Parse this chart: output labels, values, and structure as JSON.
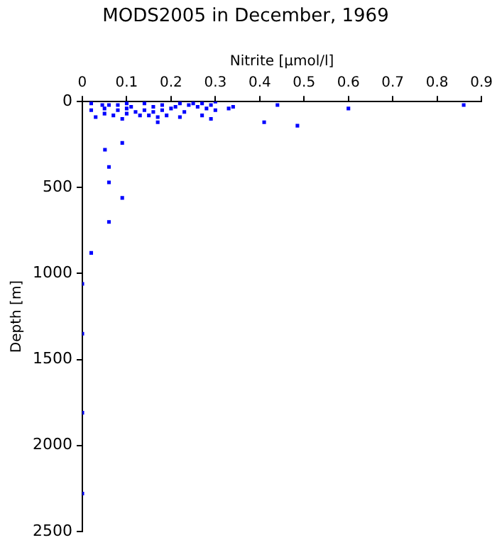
{
  "chart_data": {
    "type": "scatter",
    "title": "MODS2005 in December, 1969",
    "xlabel": "Nitrite [µmol/l]",
    "ylabel": "Depth [m]",
    "xlim": [
      0,
      0.9
    ],
    "xticks": [
      0,
      0.1,
      0.2,
      0.3,
      0.4,
      0.5,
      0.6,
      0.7,
      0.8,
      0.9
    ],
    "ylim": [
      2500,
      0
    ],
    "yticks": [
      0,
      500,
      1000,
      1500,
      2000,
      2500
    ],
    "grid": false,
    "legend": false,
    "marker": "square",
    "series": [
      {
        "color": "#0000ff",
        "x": [
          0.86,
          0.6,
          0.44,
          0.34,
          0.33,
          0.41,
          0.485,
          0.051,
          0.06,
          0.06,
          0.09,
          0.09,
          0.06,
          0.02,
          0,
          0,
          0,
          0,
          0.02,
          0.02,
          0.03,
          0.045,
          0.05,
          0.05,
          0.06,
          0.07,
          0.08,
          0.08,
          0.09,
          0.1,
          0.1,
          0.1,
          0.11,
          0.12,
          0.13,
          0.14,
          0.14,
          0.15,
          0.16,
          0.16,
          0.17,
          0.17,
          0.18,
          0.18,
          0.19,
          0.2,
          0.21,
          0.22,
          0.22,
          0.23,
          0.24,
          0.25,
          0.26,
          0.27,
          0.27,
          0.28,
          0.29,
          0.3,
          0.3,
          0.29
        ],
        "values": [
          20,
          40,
          20,
          30,
          40,
          120,
          140,
          280,
          380,
          470,
          240,
          560,
          700,
          880,
          1060,
          1350,
          1810,
          2280,
          10,
          50,
          90,
          20,
          40,
          70,
          20,
          80,
          20,
          50,
          100,
          10,
          40,
          70,
          30,
          60,
          80,
          10,
          50,
          80,
          30,
          60,
          90,
          120,
          20,
          50,
          80,
          40,
          30,
          10,
          90,
          60,
          20,
          10,
          30,
          10,
          80,
          40,
          100,
          0,
          50,
          20
        ]
      }
    ]
  }
}
